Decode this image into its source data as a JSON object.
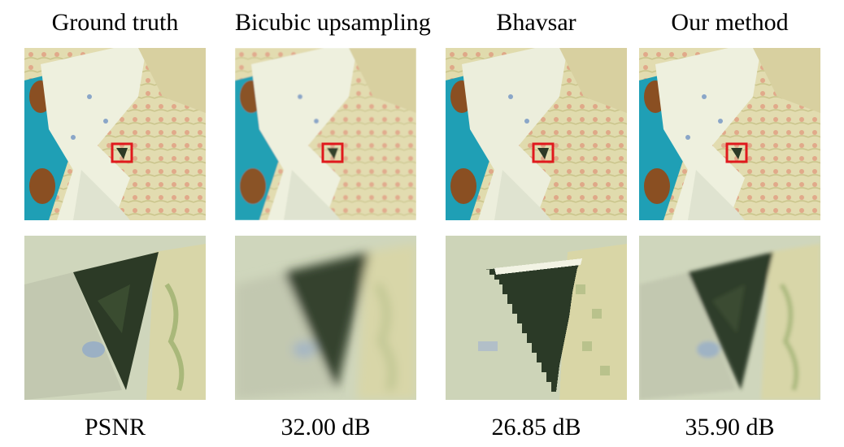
{
  "figure": {
    "columns": [
      {
        "title": "Ground truth",
        "caption": "PSNR"
      },
      {
        "title": "Bicubic upsampling",
        "caption": "32.00 dB"
      },
      {
        "title": "Bhavsar",
        "caption": "26.85 dB"
      },
      {
        "title": "Our method",
        "caption": "35.90 dB"
      }
    ]
  },
  "colors": {
    "fabric_light": "#e8e6c8",
    "fabric_pattern": "#d9d3a4",
    "teal_cloth": "#1f9fb5",
    "highlight_box": "#e0191d",
    "triangle_dark": "#2c3a26"
  }
}
